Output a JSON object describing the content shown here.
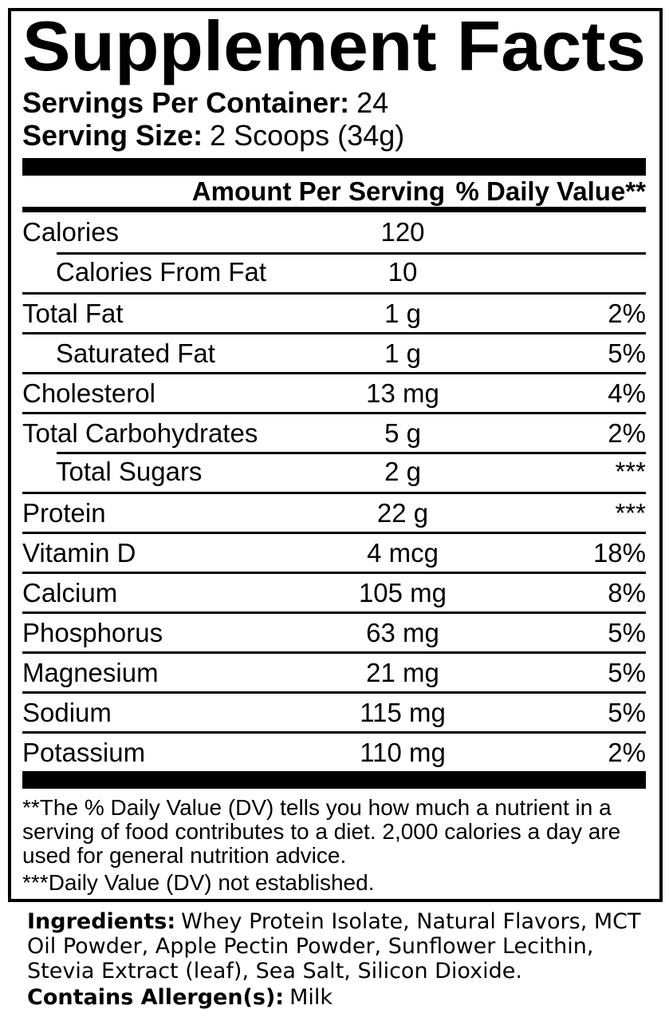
{
  "label": {
    "title": "Supplement Facts",
    "servings": {
      "label": "Servings Per Container:",
      "value": "24"
    },
    "serving_size": {
      "label": "Serving Size:",
      "value": "2 Scoops (34g)"
    },
    "table": {
      "header_amount": "Amount Per Serving",
      "header_dv": "% Daily Value**",
      "rows": [
        {
          "name": "Calories",
          "amount": "120",
          "dv": "",
          "indent": false,
          "top": "none"
        },
        {
          "name": "Calories From Fat",
          "amount": "10",
          "dv": "",
          "indent": true,
          "top": "indented"
        },
        {
          "name": "Total Fat",
          "amount": "1 g",
          "dv": "2%",
          "indent": false,
          "top": "full"
        },
        {
          "name": "Saturated Fat",
          "amount": "1 g",
          "dv": "5%",
          "indent": true,
          "top": "full"
        },
        {
          "name": "Cholesterol",
          "amount": "13 mg",
          "dv": "4%",
          "indent": false,
          "top": "full"
        },
        {
          "name": "Total Carbohydrates",
          "amount": "5 g",
          "dv": "2%",
          "indent": false,
          "top": "full"
        },
        {
          "name": "Total Sugars",
          "amount": "2 g",
          "dv": "***",
          "indent": true,
          "top": "indented"
        },
        {
          "name": "Protein",
          "amount": "22 g",
          "dv": "***",
          "indent": false,
          "top": "full"
        },
        {
          "name": "Vitamin D",
          "amount": "4 mcg",
          "dv": "18%",
          "indent": false,
          "top": "full"
        },
        {
          "name": "Calcium",
          "amount": "105 mg",
          "dv": "8%",
          "indent": false,
          "top": "full"
        },
        {
          "name": "Phosphorus",
          "amount": "63 mg",
          "dv": "5%",
          "indent": false,
          "top": "full"
        },
        {
          "name": "Magnesium",
          "amount": "21 mg",
          "dv": "5%",
          "indent": false,
          "top": "full"
        },
        {
          "name": "Sodium",
          "amount": "115 mg",
          "dv": "5%",
          "indent": false,
          "top": "full"
        },
        {
          "name": "Potassium",
          "amount": "110 mg",
          "dv": "2%",
          "indent": false,
          "top": "full"
        }
      ]
    },
    "footnotes": {
      "dv_explanation": "**The % Daily Value (DV) tells you how much a nutrient in a serving of food contributes to a diet. 2,000 calories a day are used for general nutrition advice.",
      "dv_not_established": "***Daily Value (DV) not established."
    },
    "colors": {
      "text": "#000000",
      "background": "#ffffff"
    }
  },
  "ingredients": {
    "label": "Ingredients:",
    "text": "Whey Protein Isolate, Natural Flavors, MCT Oil Powder, Apple Pectin Powder, Sunflower Lecithin, Stevia Extract (leaf), Sea Salt, Silicon Dioxide.",
    "allergen_label": "Contains Allergen(s):",
    "allergen_value": "Milk"
  }
}
